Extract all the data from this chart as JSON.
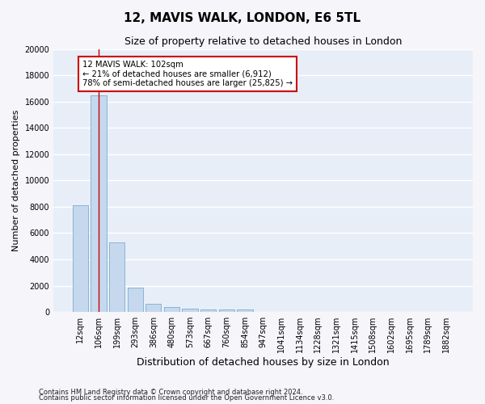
{
  "title1": "12, MAVIS WALK, LONDON, E6 5TL",
  "title2": "Size of property relative to detached houses in London",
  "xlabel": "Distribution of detached houses by size in London",
  "ylabel": "Number of detached properties",
  "categories": [
    "12sqm",
    "106sqm",
    "199sqm",
    "293sqm",
    "386sqm",
    "480sqm",
    "573sqm",
    "667sqm",
    "760sqm",
    "854sqm",
    "947sqm",
    "1041sqm",
    "1134sqm",
    "1228sqm",
    "1321sqm",
    "1415sqm",
    "1508sqm",
    "1602sqm",
    "1695sqm",
    "1789sqm",
    "1882sqm"
  ],
  "bar_values": [
    8100,
    16500,
    5300,
    1850,
    650,
    350,
    275,
    220,
    200,
    170,
    0,
    0,
    0,
    0,
    0,
    0,
    0,
    0,
    0,
    0,
    0
  ],
  "bar_color": "#c5d8ee",
  "bar_edge_color": "#7aaecc",
  "ylim": [
    0,
    20000
  ],
  "yticks": [
    0,
    2000,
    4000,
    6000,
    8000,
    10000,
    12000,
    14000,
    16000,
    18000,
    20000
  ],
  "red_line_x": 1.0,
  "annotation_text": "12 MAVIS WALK: 102sqm\n← 21% of detached houses are smaller (6,912)\n78% of semi-detached houses are larger (25,825) →",
  "annotation_box_facecolor": "#ffffff",
  "annotation_box_edgecolor": "#cc0000",
  "background_color": "#e8eef8",
  "grid_color": "#ffffff",
  "footer1": "Contains HM Land Registry data © Crown copyright and database right 2024.",
  "footer2": "Contains public sector information licensed under the Open Government Licence v3.0.",
  "title1_fontsize": 11,
  "title2_fontsize": 9,
  "tick_fontsize": 7,
  "ylabel_fontsize": 8,
  "xlabel_fontsize": 9,
  "footer_fontsize": 6
}
